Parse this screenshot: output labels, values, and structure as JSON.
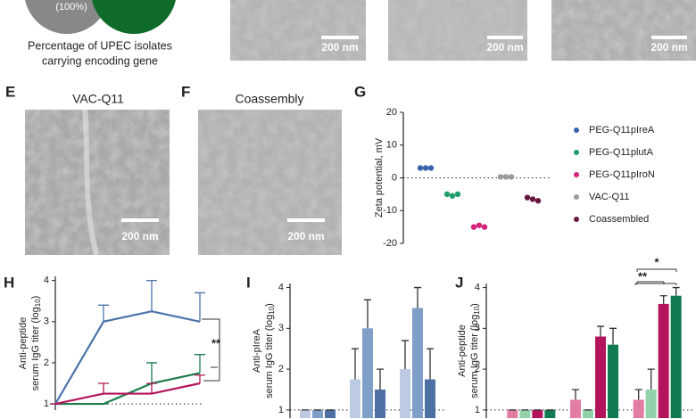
{
  "header": {
    "venn_label": "(100%)",
    "caption": [
      "Percentage of UPEC isolates",
      "carrying encoding gene"
    ]
  },
  "panels": {
    "top_images": [
      "200 nm",
      "200 nm",
      "200 nm"
    ],
    "E": {
      "letter": "E",
      "title": "VAC-Q11",
      "scale": "200 nm"
    },
    "F": {
      "letter": "F",
      "title": "Coassembly",
      "scale": "200 nm"
    },
    "G": {
      "letter": "G"
    },
    "H": {
      "letter": "H"
    },
    "I": {
      "letter": "I"
    },
    "J": {
      "letter": "J"
    }
  },
  "chart_data": [
    {
      "type": "dot",
      "y_label": [
        "Zeta potential, mV"
      ],
      "ylim": [
        -20,
        20
      ],
      "yticks": [
        -20,
        -10,
        0,
        10,
        20
      ],
      "ref_line": 0,
      "series": [
        {
          "name": "PEG-Q11pIreA",
          "color": "#3a62ad",
          "values": [
            3,
            3,
            3
          ]
        },
        {
          "name": "PEG-Q11plutA",
          "color": "#1f9e6c",
          "values": [
            -5,
            -5.5,
            -5
          ]
        },
        {
          "name": "PEG-Q11pIroN",
          "color": "#d4237a",
          "values": [
            -15,
            -14.5,
            -15
          ]
        },
        {
          "name": "VAC-Q11",
          "color": "#9a9a9a",
          "values": [
            0.3,
            0.3,
            0.3
          ]
        },
        {
          "name": "Coassembled",
          "color": "#6a1742",
          "values": [
            -6,
            -6.5,
            -7
          ]
        }
      ]
    },
    {
      "type": "line",
      "y_label": [
        "Anti-peptide",
        "serum IgG titer (log",
        "10",
        ")"
      ],
      "ylim": [
        0.85,
        4.1
      ],
      "yticks": [
        1,
        2,
        3,
        4
      ],
      "ref_line": 1,
      "series": [
        {
          "color": "#4a74aa",
          "values": [
            1,
            3,
            3.25,
            3
          ],
          "errors": [
            0,
            0.4,
            0.75,
            0.7
          ]
        },
        {
          "color": "#1b7d4c",
          "values": [
            1,
            1,
            1.5,
            1.75
          ],
          "errors": [
            0,
            0,
            0.5,
            0.45
          ]
        },
        {
          "color": "#b3145b",
          "values": [
            1,
            1.25,
            1.25,
            1.5
          ],
          "errors": [
            0,
            0.25,
            0.25,
            0.2
          ]
        }
      ],
      "annotations": [
        "**"
      ]
    },
    {
      "type": "bar",
      "y_label": [
        "Anti-pIreA",
        "serum IgG titer (log",
        "10",
        ")"
      ],
      "ylim": [
        0.8,
        4.1
      ],
      "yticks": [
        1,
        2,
        3,
        4
      ],
      "ref_line": 1,
      "series": [
        {
          "color": "#bccbe2",
          "values": [
            1,
            1.75,
            2
          ],
          "errors": [
            0,
            0.75,
            0.7
          ]
        },
        {
          "color": "#7f9fc9",
          "values": [
            1,
            3,
            3.5
          ],
          "errors": [
            0,
            0.7,
            0.5
          ]
        },
        {
          "color": "#4d71a3",
          "values": [
            1,
            1.5,
            1.75
          ],
          "errors": [
            0,
            0.5,
            0.75
          ]
        }
      ]
    },
    {
      "type": "bar",
      "y_label": [
        "Anti-peptide",
        "serum IgG titer (log",
        "10",
        ")"
      ],
      "ylim": [
        0.8,
        4.1
      ],
      "yticks": [
        1,
        2,
        3,
        4
      ],
      "ref_line": 1,
      "series": [
        {
          "color": "#e27ca3",
          "values": [
            1,
            1.25,
            1.25
          ],
          "errors": [
            0,
            0.25,
            0.25
          ]
        },
        {
          "color": "#93d1ab",
          "values": [
            1,
            1,
            1.5
          ],
          "errors": [
            0,
            0,
            0.5
          ]
        },
        {
          "color": "#b3145b",
          "values": [
            1,
            2.8,
            3.6
          ],
          "errors": [
            0,
            0.25,
            0.2
          ]
        },
        {
          "color": "#127a50",
          "values": [
            1,
            2.6,
            3.8
          ],
          "errors": [
            0,
            0.4,
            0.2
          ]
        }
      ],
      "annotations": [
        "**",
        "*"
      ]
    }
  ]
}
